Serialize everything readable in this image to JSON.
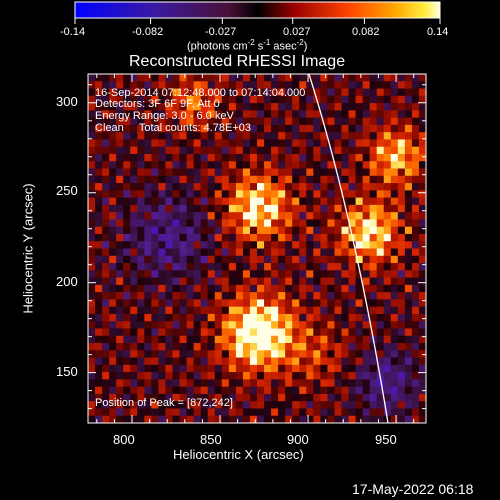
{
  "colorbar": {
    "ticks": [
      "-0.14",
      "-0.082",
      "-0.027",
      "0.027",
      "0.082",
      "0.14"
    ],
    "unit_main": "(photons cm",
    "unit_exp1": "-2",
    "unit_s": " s",
    "unit_exp2": "-1",
    "unit_asec": " asec",
    "unit_exp3": "-2",
    "unit_close": ")",
    "range": [
      -0.14,
      0.14
    ]
  },
  "chart_data": {
    "type": "heatmap",
    "title": "Reconstructed RHESSI Image",
    "xlabel": "Heliocentric X (arcsec)",
    "ylabel": "Heliocentric Y (arcsec)",
    "xlim": [
      775,
      967
    ],
    "ylim": [
      122,
      316
    ],
    "x_ticks": [
      800,
      850,
      900,
      950
    ],
    "y_ticks": [
      150,
      200,
      250,
      300
    ],
    "x_tick_labels": [
      "800",
      "850",
      "900",
      "950"
    ],
    "y_tick_labels": [
      "150",
      "200",
      "250",
      "300"
    ],
    "info_lines": [
      "16-Sep-2014 07:12:48.000 to 07:14:04.000",
      "Detectors: 3F 6F 9F, Att 0",
      "Energy Range: 3.0 - 6.0 keV",
      "Clean     Total counts: 4.78E+03"
    ],
    "peak_label": "Position of Peak = [872,242]",
    "peak": [
      872,
      242
    ],
    "solar_limb": true,
    "colormap": "blue-purple-red-yellow-white"
  },
  "timestamp": "17-May-2022 06:18"
}
